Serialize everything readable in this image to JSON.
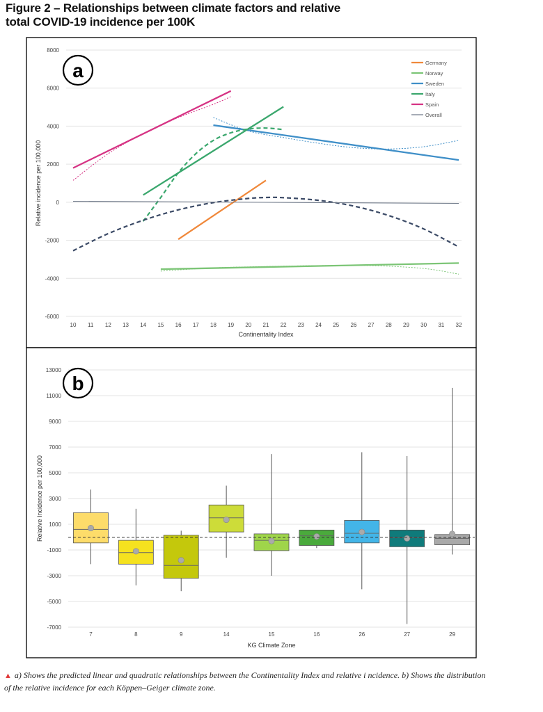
{
  "figure": {
    "title": "Figure 2 – Relationships between climate factors and relative total COVID-19 incidence per 100K",
    "caption": "a) Shows the predicted linear and quadratic relationships between the Continentality Index and relative i ncidence. b) Shows the distribution of the relative incidence for each Köppen–Geiger climate zone.",
    "caption_marker": "▲"
  },
  "chart_data": [
    {
      "type": "line",
      "panel_label": "a",
      "xlabel": "Continentality Index",
      "ylabel": "Relative incidence per 100,000",
      "xlim": [
        10,
        32
      ],
      "ylim": [
        -6000,
        8000
      ],
      "x_ticks": [
        10,
        11,
        12,
        13,
        14,
        15,
        16,
        17,
        18,
        19,
        20,
        21,
        22,
        23,
        24,
        25,
        26,
        27,
        28,
        29,
        30,
        31,
        32
      ],
      "y_ticks": [
        -6000,
        -4000,
        -2000,
        0,
        2000,
        4000,
        6000,
        8000
      ],
      "grid": "horizontal",
      "legend_position": "top-right",
      "series": [
        {
          "name": "Germany",
          "color": "#f0883a",
          "linear": [
            [
              16,
              -1950
            ],
            [
              21,
              1150
            ]
          ]
        },
        {
          "name": "Norway",
          "color": "#7cc576",
          "linear": [
            [
              15,
              -3520
            ],
            [
              32,
              -3200
            ]
          ],
          "quadratic": [
            [
              15,
              -3620
            ],
            [
              18,
              -3450
            ],
            [
              21,
              -3380
            ],
            [
              24,
              -3330
            ],
            [
              27,
              -3330
            ],
            [
              30,
              -3480
            ],
            [
              32,
              -3780
            ]
          ]
        },
        {
          "name": "Sweden",
          "color": "#3f8fc8",
          "linear": [
            [
              18,
              4050
            ],
            [
              32,
              2220
            ]
          ],
          "quadratic": [
            [
              18,
              4450
            ],
            [
              20,
              3750
            ],
            [
              22,
              3400
            ],
            [
              24,
              3100
            ],
            [
              26,
              2870
            ],
            [
              28,
              2800
            ],
            [
              30,
              2920
            ],
            [
              32,
              3250
            ]
          ]
        },
        {
          "name": "Italy",
          "color": "#3aa76d",
          "linear": [
            [
              14,
              380
            ],
            [
              22,
              5020
            ]
          ],
          "quadratic": [
            [
              14,
              -1000
            ],
            [
              15,
              250
            ],
            [
              16,
              1550
            ],
            [
              17,
              2550
            ],
            [
              18,
              3250
            ],
            [
              19,
              3650
            ],
            [
              20,
              3850
            ],
            [
              21,
              3900
            ],
            [
              22,
              3820
            ]
          ]
        },
        {
          "name": "Spain",
          "color": "#d63384",
          "linear": [
            [
              10,
              1800
            ],
            [
              19,
              5850
            ]
          ],
          "quadratic": [
            [
              10,
              1150
            ],
            [
              12,
              2550
            ],
            [
              14,
              3600
            ],
            [
              16,
              4450
            ],
            [
              18,
              5150
            ],
            [
              19,
              5550
            ]
          ]
        },
        {
          "name": "Overall",
          "color": "#707a8a",
          "linear": [
            [
              10,
              50
            ],
            [
              32,
              -60
            ]
          ],
          "quadratic": [
            [
              10,
              -2550
            ],
            [
              12,
              -1650
            ],
            [
              14,
              -950
            ],
            [
              16,
              -400
            ],
            [
              18,
              -20
            ],
            [
              20,
              200
            ],
            [
              21,
              250
            ],
            [
              22,
              240
            ],
            [
              24,
              100
            ],
            [
              26,
              -200
            ],
            [
              28,
              -700
            ],
            [
              30,
              -1400
            ],
            [
              32,
              -2350
            ]
          ],
          "quadratic_color": "#3b4a66"
        }
      ]
    },
    {
      "type": "box",
      "panel_label": "b",
      "xlabel": "KG Climate Zone",
      "ylabel": "Relative Incidence per 100,000",
      "ylim": [
        -7000,
        13000
      ],
      "y_ticks": [
        -7000,
        -5000,
        -3000,
        -1000,
        1000,
        3000,
        5000,
        7000,
        9000,
        11000,
        13000
      ],
      "grid": "horizontal",
      "reference_line": 0,
      "categories": [
        "7",
        "8",
        "9",
        "14",
        "15",
        "16",
        "26",
        "27",
        "29"
      ],
      "boxes": [
        {
          "zone": "7",
          "color": "#fddc6a",
          "min": -2100,
          "q1": -450,
          "median": 600,
          "q3": 1900,
          "max": 3700,
          "mean": 700
        },
        {
          "zone": "8",
          "color": "#f5e21f",
          "min": -3750,
          "q1": -2100,
          "median": -1200,
          "q3": -250,
          "max": 2200,
          "mean": -1100
        },
        {
          "zone": "9",
          "color": "#c4c80c",
          "min": -4200,
          "q1": -3200,
          "median": -2200,
          "q3": 150,
          "max": 500,
          "mean": -1800
        },
        {
          "zone": "14",
          "color": "#cddc39",
          "min": -1600,
          "q1": 400,
          "median": 1500,
          "q3": 2500,
          "max": 4000,
          "mean": 1350
        },
        {
          "zone": "15",
          "color": "#9fd54a",
          "min": -3000,
          "q1": -1050,
          "median": -250,
          "q3": 250,
          "max": 6450,
          "mean": -300
        },
        {
          "zone": "16",
          "color": "#4aaa3c",
          "min": -850,
          "q1": -650,
          "median": 100,
          "q3": 550,
          "max": 550,
          "mean": 50
        },
        {
          "zone": "26",
          "color": "#43b5e8",
          "min": -4050,
          "q1": -450,
          "median": 300,
          "q3": 1300,
          "max": 6600,
          "mean": 400
        },
        {
          "zone": "27",
          "color": "#0f7b7b",
          "min": -6750,
          "q1": -750,
          "median": -50,
          "q3": 550,
          "max": 6300,
          "mean": -100
        },
        {
          "zone": "29",
          "color": "#a9a9a9",
          "min": -1350,
          "q1": -600,
          "median": -100,
          "q3": 200,
          "max": 11600,
          "mean": 250
        }
      ]
    }
  ]
}
